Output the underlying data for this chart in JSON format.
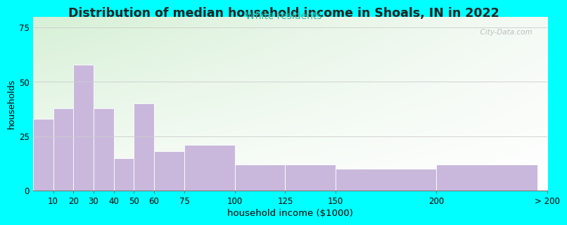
{
  "title": "Distribution of median household income in Shoals, IN in 2022",
  "subtitle": "White residents",
  "xlabel": "household income ($1000)",
  "ylabel": "households",
  "background_color": "#00FFFF",
  "bar_color": "#c9b8dc",
  "title_fontsize": 12.5,
  "subtitle_fontsize": 10,
  "subtitle_color": "#33bbaa",
  "xlabel_fontsize": 9.5,
  "ylabel_fontsize": 9,
  "tick_fontsize": 8.5,
  "categories": [
    "10",
    "20",
    "30",
    "40",
    "50",
    "60",
    "75",
    "100",
    "125",
    "150",
    "200",
    "> 200"
  ],
  "values": [
    33,
    38,
    58,
    38,
    15,
    40,
    18,
    21,
    12,
    12,
    10,
    12
  ],
  "ylim": [
    0,
    80
  ],
  "yticks": [
    0,
    25,
    50,
    75
  ],
  "watermark": "  City-Data.com"
}
